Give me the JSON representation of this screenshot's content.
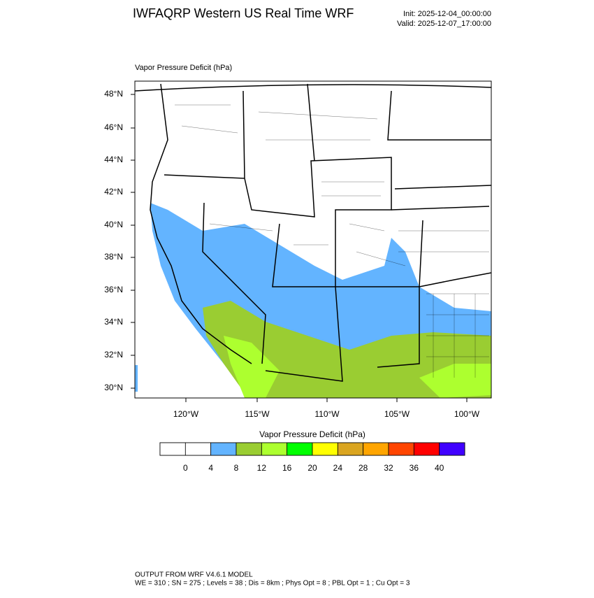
{
  "header": {
    "title": "IWFAQRP Western US Real Time WRF",
    "init": "Init: 2025-12-04_00:00:00",
    "valid": "Valid: 2025-12-07_17:00:00"
  },
  "map": {
    "subtitle": "Vapor Pressure Deficit   (hPa)",
    "lat_labels": [
      "48°N",
      "46°N",
      "44°N",
      "42°N",
      "40°N",
      "38°N",
      "36°N",
      "34°N",
      "32°N",
      "30°N"
    ],
    "lon_labels": [
      "120°W",
      "115°W",
      "110°W",
      "105°W",
      "100°W"
    ]
  },
  "colorbar": {
    "title": "Vapor Pressure Deficit  (hPa)",
    "levels": [
      0,
      4,
      8,
      12,
      16,
      20,
      24,
      28,
      32,
      36,
      40
    ],
    "colors": [
      "#ffffff",
      "#ffffff",
      "#63b4ff",
      "#9acd32",
      "#adff2f",
      "#00ff00",
      "#ffff00",
      "#daa520",
      "#ffa500",
      "#ff4500",
      "#ff0000",
      "#4000ff"
    ]
  },
  "footer": {
    "line1": "OUTPUT FROM WRF V4.6.1 MODEL",
    "line2": "WE = 310 ; SN = 275 ; Levels = 38 ; Dis = 8km ; Phys Opt = 8 ; PBL Opt = 1 ; Cu Opt = 3"
  }
}
